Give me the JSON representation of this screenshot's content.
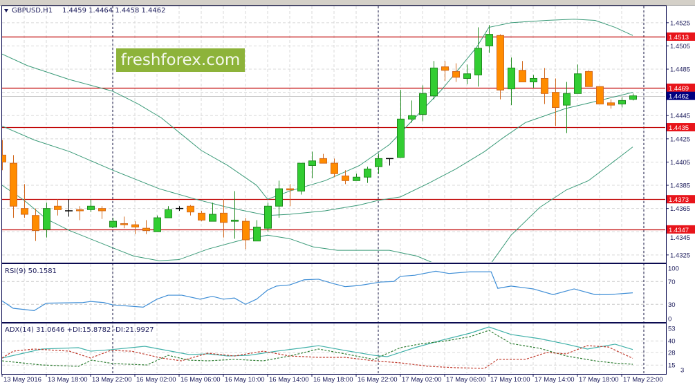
{
  "chart_header": {
    "symbol_tf": "GBPUSD,H1",
    "ohlc_text": "1.4459 1.4464 1.4458 1.4462"
  },
  "watermark": "freshforex.com",
  "colors": {
    "bull": "#32cd32",
    "bear": "#ff8c00",
    "bands": "#3a9a78",
    "level_line": "#c00000",
    "level_tag": "#e8141a",
    "price_tag": "#000080",
    "rsi": "#3f8ed6",
    "adx": "#3fb0a8",
    "plus_di": "#2e7d32",
    "minus_di": "#c0392b"
  },
  "price_axis": {
    "ticks": [
      "1.4525",
      "1.4505",
      "1.4485",
      "1.4445",
      "1.4425",
      "1.4405",
      "1.4385",
      "1.4365",
      "1.4345",
      "1.4325"
    ]
  },
  "levels": [
    "1.4513",
    "1.4469",
    "1.4435",
    "1.4373",
    "1.4347"
  ],
  "current_price": "1.4462",
  "x_axis": {
    "labels": [
      "13 May 2016",
      "13 May 18:00",
      "13 May 22:00",
      "16 May 02:00",
      "16 May 06:00",
      "16 May 10:00",
      "16 May 14:00",
      "16 May 18:00",
      "16 May 22:00",
      "17 May 02:00",
      "17 May 06:00",
      "17 May 10:00",
      "17 May 14:00",
      "17 May 18:00",
      "17 May 22:00"
    ]
  },
  "chart_data": [
    {
      "type": "candlestick",
      "title": "GBPUSD,H1",
      "ylim": [
        1.4318,
        1.454
      ],
      "grid": true,
      "ohlc": [
        [
          1.4411,
          1.4424,
          1.4398,
          1.4405
        ],
        [
          1.4404,
          1.4411,
          1.4357,
          1.4367
        ],
        [
          1.4365,
          1.4386,
          1.4357,
          1.436
        ],
        [
          1.4359,
          1.4365,
          1.4337,
          1.4346
        ],
        [
          1.4347,
          1.437,
          1.434,
          1.4365
        ],
        [
          1.4367,
          1.4373,
          1.4359,
          1.4364
        ],
        [
          1.4363,
          1.4373,
          1.4358,
          1.4363
        ],
        [
          1.4364,
          1.4367,
          1.4355,
          1.4363
        ],
        [
          1.4364,
          1.4373,
          1.4362,
          1.4367
        ],
        [
          1.4365,
          1.4367,
          1.4356,
          1.4363
        ],
        [
          1.4349,
          1.4357,
          1.4349,
          1.4354
        ],
        [
          1.4352,
          1.4358,
          1.4348,
          1.4351
        ],
        [
          1.4351,
          1.4354,
          1.4343,
          1.4349
        ],
        [
          1.4348,
          1.4355,
          1.4343,
          1.4346
        ],
        [
          1.4345,
          1.4359,
          1.4345,
          1.4357
        ],
        [
          1.4357,
          1.4367,
          1.4357,
          1.4364
        ],
        [
          1.4365,
          1.4367,
          1.4363,
          1.4365
        ],
        [
          1.4367,
          1.4368,
          1.4359,
          1.4362
        ],
        [
          1.4361,
          1.4363,
          1.4354,
          1.4355
        ],
        [
          1.4354,
          1.437,
          1.4354,
          1.436
        ],
        [
          1.4361,
          1.4373,
          1.434,
          1.4353
        ],
        [
          1.4354,
          1.438,
          1.4339,
          1.4355
        ],
        [
          1.4354,
          1.4357,
          1.433,
          1.4338
        ],
        [
          1.4337,
          1.4355,
          1.4337,
          1.4349
        ],
        [
          1.4348,
          1.437,
          1.4345,
          1.4367
        ],
        [
          1.4367,
          1.4389,
          1.4357,
          1.4382
        ],
        [
          1.4382,
          1.4386,
          1.4367,
          1.4381
        ],
        [
          1.438,
          1.4404,
          1.4377,
          1.4404
        ],
        [
          1.4402,
          1.4414,
          1.4391,
          1.4406
        ],
        [
          1.4408,
          1.4412,
          1.4404,
          1.4404
        ],
        [
          1.4404,
          1.4408,
          1.4392,
          1.4395
        ],
        [
          1.4393,
          1.4398,
          1.4386,
          1.4389
        ],
        [
          1.4389,
          1.4395,
          1.4389,
          1.4392
        ],
        [
          1.4392,
          1.4401,
          1.4387,
          1.4399
        ],
        [
          1.4401,
          1.4412,
          1.4395,
          1.4408
        ],
        [
          1.4408,
          1.4408,
          1.4402,
          1.4408
        ],
        [
          1.4409,
          1.4467,
          1.4409,
          1.4442
        ],
        [
          1.4442,
          1.4458,
          1.4439,
          1.4445
        ],
        [
          1.4446,
          1.4471,
          1.444,
          1.4464
        ],
        [
          1.4462,
          1.4492,
          1.4459,
          1.4486
        ],
        [
          1.4487,
          1.4492,
          1.4475,
          1.4484
        ],
        [
          1.4483,
          1.449,
          1.4474,
          1.4478
        ],
        [
          1.4477,
          1.4489,
          1.4472,
          1.4481
        ],
        [
          1.448,
          1.4521,
          1.447,
          1.4503
        ],
        [
          1.4505,
          1.4523,
          1.4499,
          1.4515
        ],
        [
          1.4514,
          1.4515,
          1.4459,
          1.4467
        ],
        [
          1.4468,
          1.4495,
          1.4454,
          1.4486
        ],
        [
          1.4484,
          1.4492,
          1.4474,
          1.4474
        ],
        [
          1.4474,
          1.448,
          1.4469,
          1.4477
        ],
        [
          1.4477,
          1.4486,
          1.4455,
          1.4464
        ],
        [
          1.4465,
          1.4477,
          1.4436,
          1.4452
        ],
        [
          1.4454,
          1.4474,
          1.443,
          1.4464
        ],
        [
          1.4464,
          1.4489,
          1.4464,
          1.4481
        ],
        [
          1.4483,
          1.4484,
          1.447,
          1.447
        ],
        [
          1.447,
          1.447,
          1.4455,
          1.4455
        ],
        [
          1.4456,
          1.4459,
          1.4451,
          1.4454
        ],
        [
          1.4455,
          1.4461,
          1.4452,
          1.4458
        ],
        [
          1.4459,
          1.4464,
          1.4458,
          1.4462
        ]
      ],
      "bollinger": {
        "upper": [
          [
            0,
            1.4498
          ],
          [
            2.3,
            1.4488
          ],
          [
            6.1,
            1.4476
          ],
          [
            10,
            1.4466
          ],
          [
            12.3,
            1.4455
          ],
          [
            14.4,
            1.4443
          ],
          [
            18,
            1.4415
          ],
          [
            20.4,
            1.4402
          ],
          [
            23,
            1.4385
          ],
          [
            24,
            1.4373
          ],
          [
            26,
            1.438
          ],
          [
            29.2,
            1.4389
          ],
          [
            32.3,
            1.4402
          ],
          [
            35,
            1.442
          ],
          [
            37.3,
            1.4443
          ],
          [
            39.8,
            1.4468
          ],
          [
            42.9,
            1.4504
          ],
          [
            44,
            1.4521
          ],
          [
            46,
            1.4525
          ],
          [
            49.2,
            1.4527
          ],
          [
            51.7,
            1.4528
          ],
          [
            53.6,
            1.4527
          ],
          [
            55.4,
            1.4521
          ],
          [
            57,
            1.4514
          ]
        ],
        "middle": [
          [
            0,
            1.4436
          ],
          [
            2.9,
            1.4424
          ],
          [
            6.1,
            1.4414
          ],
          [
            10,
            1.4398
          ],
          [
            14.2,
            1.4382
          ],
          [
            17.5,
            1.4373
          ],
          [
            20.4,
            1.4366
          ],
          [
            24,
            1.4359
          ],
          [
            26,
            1.436
          ],
          [
            29.2,
            1.4363
          ],
          [
            32.3,
            1.4368
          ],
          [
            34,
            1.4372
          ],
          [
            36,
            1.4375
          ],
          [
            38.6,
            1.4387
          ],
          [
            41,
            1.4399
          ],
          [
            43.6,
            1.4414
          ],
          [
            45.3,
            1.4426
          ],
          [
            47.3,
            1.4439
          ],
          [
            50.9,
            1.4451
          ],
          [
            54,
            1.4458
          ],
          [
            57,
            1.4465
          ]
        ],
        "lower": [
          [
            0,
            1.4385
          ],
          [
            2,
            1.4372
          ],
          [
            4,
            1.4356
          ],
          [
            6.1,
            1.4346
          ],
          [
            10.3,
            1.433
          ],
          [
            11.9,
            1.4324
          ],
          [
            14.2,
            1.432
          ],
          [
            16,
            1.4321
          ],
          [
            18.6,
            1.433
          ],
          [
            21.7,
            1.4338
          ],
          [
            24,
            1.4342
          ],
          [
            26,
            1.4339
          ],
          [
            28.1,
            1.4332
          ],
          [
            30.3,
            1.4329
          ],
          [
            35,
            1.4329
          ],
          [
            37.5,
            1.4324
          ],
          [
            39,
            1.4318
          ],
          [
            41,
            1.4311
          ],
          [
            43,
            1.4311
          ],
          [
            44.2,
            1.4318
          ],
          [
            46,
            1.4342
          ],
          [
            48.6,
            1.4366
          ],
          [
            51,
            1.4381
          ],
          [
            53,
            1.4389
          ],
          [
            54.8,
            1.4402
          ],
          [
            57,
            1.4418
          ]
        ]
      }
    },
    {
      "type": "line",
      "title": "RSI(9) 50.1581",
      "ylim": [
        0,
        100
      ],
      "yticks": [
        "100",
        "70",
        "30",
        "0"
      ],
      "values": [
        [
          0,
          36
        ],
        [
          1,
          23
        ],
        [
          2.9,
          19
        ],
        [
          4,
          32
        ],
        [
          7.3,
          33
        ],
        [
          8,
          35
        ],
        [
          9.2,
          33
        ],
        [
          10,
          29
        ],
        [
          12.75,
          25
        ],
        [
          14,
          39
        ],
        [
          15,
          46
        ],
        [
          16.25,
          46
        ],
        [
          17.9,
          39
        ],
        [
          19,
          44
        ],
        [
          20,
          39
        ],
        [
          21,
          41
        ],
        [
          22,
          30
        ],
        [
          23,
          39
        ],
        [
          24,
          55
        ],
        [
          24.8,
          62
        ],
        [
          26,
          64
        ],
        [
          27.3,
          73
        ],
        [
          28.6,
          74
        ],
        [
          29.8,
          67
        ],
        [
          31,
          61
        ],
        [
          32.3,
          63
        ],
        [
          34.2,
          69
        ],
        [
          35.4,
          70
        ],
        [
          36,
          79
        ],
        [
          37.3,
          81
        ],
        [
          39.2,
          88
        ],
        [
          40.4,
          84
        ],
        [
          42.3,
          87
        ],
        [
          44.2,
          87
        ],
        [
          44.8,
          58
        ],
        [
          46,
          62
        ],
        [
          48,
          57
        ],
        [
          49.8,
          47
        ],
        [
          51.7,
          57
        ],
        [
          53.6,
          47
        ],
        [
          54.8,
          47
        ],
        [
          57,
          50.16
        ]
      ]
    },
    {
      "type": "line",
      "title": "ADX(14) 31.0646 +DI:15.8782 -DI:21.9927",
      "yticks": [
        "53",
        "40",
        "28",
        "15",
        "3"
      ],
      "series": [
        {
          "name": "ADX",
          "values": [
            [
              0,
              22.3
            ],
            [
              3.6,
              31.6
            ],
            [
              6.9,
              33
            ],
            [
              8,
              29.4
            ],
            [
              9.8,
              30.9
            ],
            [
              12.9,
              34.4
            ],
            [
              16.9,
              25.9
            ],
            [
              18.6,
              26.6
            ],
            [
              20.4,
              24.4
            ],
            [
              22.3,
              25.1
            ],
            [
              24.8,
              29.4
            ],
            [
              27.3,
              33
            ],
            [
              28.6,
              35.1
            ],
            [
              31,
              30.1
            ],
            [
              33.6,
              25.1
            ],
            [
              34.8,
              23.7
            ],
            [
              37.3,
              33
            ],
            [
              39.8,
              40.9
            ],
            [
              42.3,
              48
            ],
            [
              44,
              54.4
            ],
            [
              46,
              46.6
            ],
            [
              48.6,
              42.3
            ],
            [
              51,
              36.6
            ],
            [
              52.9,
              31.6
            ],
            [
              55.4,
              36.6
            ],
            [
              57,
              31.06
            ]
          ]
        },
        {
          "name": "+DI",
          "values": [
            [
              0,
              19.4
            ],
            [
              3.6,
              15.1
            ],
            [
              6.9,
              13.7
            ],
            [
              8.1,
              20.1
            ],
            [
              10,
              16.6
            ],
            [
              13.1,
              15.1
            ],
            [
              15,
              25.1
            ],
            [
              16.9,
              20.1
            ],
            [
              18.6,
              19.4
            ],
            [
              21,
              20.9
            ],
            [
              23.6,
              19.4
            ],
            [
              26,
              24.4
            ],
            [
              28.6,
              31.6
            ],
            [
              31,
              26.6
            ],
            [
              33.6,
              20.9
            ],
            [
              36,
              33
            ],
            [
              38,
              37.3
            ],
            [
              39.8,
              39.4
            ],
            [
              42.3,
              44.4
            ],
            [
              44,
              50.9
            ],
            [
              46,
              37.3
            ],
            [
              48.6,
              32.3
            ],
            [
              51,
              24.4
            ],
            [
              53.6,
              19.4
            ],
            [
              55.4,
              17
            ],
            [
              57,
              15.88
            ]
          ]
        },
        {
          "name": "-DI",
          "values": [
            [
              0,
              22.3
            ],
            [
              1,
              29.4
            ],
            [
              2.9,
              31.6
            ],
            [
              6.1,
              29.4
            ],
            [
              8,
              22.3
            ],
            [
              9.8,
              30.1
            ],
            [
              11.7,
              29.4
            ],
            [
              14.4,
              22.3
            ],
            [
              16.2,
              19.4
            ],
            [
              18.6,
              27.3
            ],
            [
              21,
              24.4
            ],
            [
              23.6,
              29.4
            ],
            [
              26,
              24.4
            ],
            [
              28.6,
              23
            ],
            [
              31,
              23
            ],
            [
              33.6,
              19.4
            ],
            [
              36,
              17.3
            ],
            [
              38.6,
              13.7
            ],
            [
              41,
              12.3
            ],
            [
              43.6,
              11.6
            ],
            [
              44.8,
              20.9
            ],
            [
              47.3,
              20.9
            ],
            [
              49.2,
              28
            ],
            [
              51,
              26.6
            ],
            [
              52.9,
              35.1
            ],
            [
              54.8,
              33.7
            ],
            [
              57,
              21.99
            ]
          ]
        }
      ]
    }
  ]
}
